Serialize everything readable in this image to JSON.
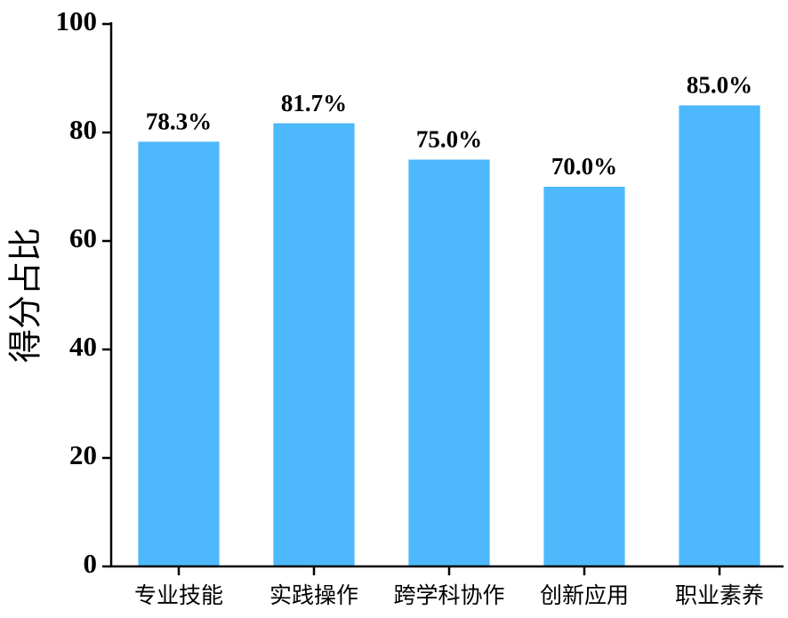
{
  "chart_data": {
    "type": "bar",
    "ylabel": "得分占比",
    "categories": [
      "专业技能",
      "实践操作",
      "跨学科协作",
      "创新应用",
      "职业素养"
    ],
    "values": [
      78.3,
      81.7,
      75.0,
      70.0,
      85.0
    ],
    "value_labels": [
      "78.3%",
      "81.7%",
      "75.0%",
      "70.0%",
      "85.0%"
    ],
    "color": "#4db8fb",
    "ylim": [
      0,
      100
    ],
    "yticks": [
      0,
      20,
      40,
      60,
      80,
      100
    ]
  }
}
